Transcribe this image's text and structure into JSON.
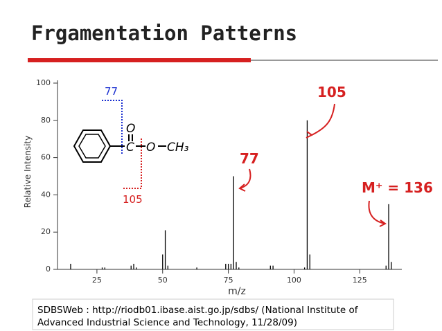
{
  "title": "Frgamentation Patterns",
  "chart_data": {
    "type": "bar",
    "y_label": "Relative Intensity",
    "x_label": "m/z",
    "x": [
      15,
      27,
      28,
      38,
      39,
      40,
      50,
      51,
      52,
      63,
      74,
      75,
      76,
      77,
      78,
      79,
      91,
      92,
      104,
      105,
      106,
      135,
      136,
      137
    ],
    "values": [
      3,
      1,
      1,
      2,
      3,
      1,
      8,
      21,
      2,
      1,
      3,
      3,
      3,
      50,
      4,
      1,
      2,
      2,
      1,
      80,
      8,
      2,
      35,
      4
    ],
    "color": "#000000",
    "xlim": [
      10,
      141
    ],
    "ylim": [
      0,
      100
    ],
    "xticks": [
      25,
      50,
      75,
      100,
      125
    ],
    "yticks": [
      0,
      20,
      40,
      60,
      80,
      100
    ]
  },
  "structure": {
    "carbonyl_o": "O",
    "carbon": "C",
    "ester_o": "O",
    "methyl": "CH₃"
  },
  "annotations": {
    "structure_77": "77",
    "structure_105": "105",
    "peak_105": "105",
    "peak_77": "77",
    "molecular_ion": "M⁺ = 136"
  },
  "citation": [
    "SDBSWeb : http://riodb01.ibase.aist.go.jp/sdbs/ (National Institute of",
    "Advanced Industrial Science and Technology, 11/28/09)"
  ]
}
